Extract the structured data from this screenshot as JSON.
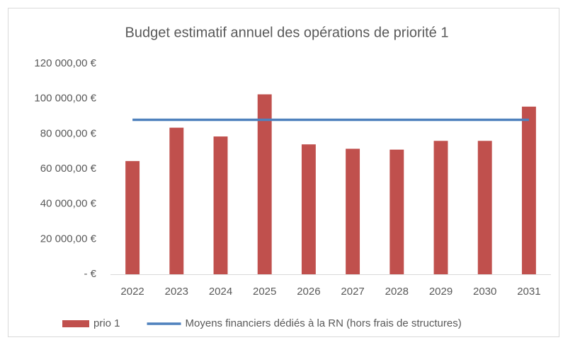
{
  "chart_data": {
    "type": "bar",
    "title": "Budget estimatif annuel des opérations de priorité 1",
    "categories": [
      "2022",
      "2023",
      "2024",
      "2025",
      "2026",
      "2027",
      "2028",
      "2029",
      "2030",
      "2031"
    ],
    "series": [
      {
        "name": "prio 1",
        "type": "bar",
        "color": "#c0504d",
        "values": [
          64500,
          83500,
          78500,
          102500,
          74000,
          71500,
          71000,
          76000,
          76000,
          95500
        ]
      },
      {
        "name": "Moyens financiers dédiés à la RN (hors frais de structures)",
        "type": "line",
        "color": "#4f81bd",
        "values": [
          88000,
          88000,
          88000,
          88000,
          88000,
          88000,
          88000,
          88000,
          88000,
          88000
        ]
      }
    ],
    "ylim": [
      0,
      120000
    ],
    "yticks": [
      {
        "value": 0,
        "label": "-   €"
      },
      {
        "value": 20000,
        "label": "20 000,00 €"
      },
      {
        "value": 40000,
        "label": "40 000,00 €"
      },
      {
        "value": 60000,
        "label": "60 000,00 €"
      },
      {
        "value": 80000,
        "label": "80 000,00 €"
      },
      {
        "value": 100000,
        "label": "100 000,00 €"
      },
      {
        "value": 120000,
        "label": "120 000,00 €"
      }
    ],
    "grid": false,
    "legend": "bottom"
  }
}
